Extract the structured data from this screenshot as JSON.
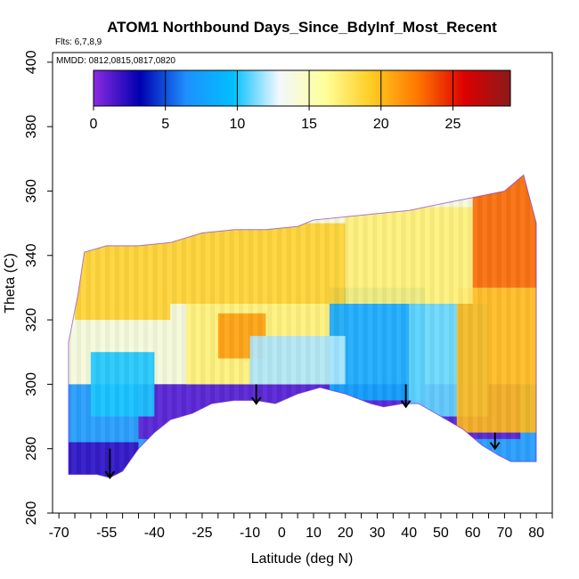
{
  "chart_data": {
    "type": "heatmap",
    "title": "ATOM1 Northbound Days_Since_BdyInf_Most_Recent",
    "subtitle_lines": [
      "Flts: 6,7,8,9",
      "MMDD: 0812,0815,0817,0820"
    ],
    "xlabel": "Latitude (deg N)",
    "ylabel": "Theta (C)",
    "xlim": [
      -72,
      85
    ],
    "ylim": [
      260,
      403
    ],
    "x_ticks": [
      -70,
      -55,
      -40,
      -25,
      -10,
      0,
      10,
      20,
      30,
      40,
      50,
      60,
      70,
      80
    ],
    "x_ticks_minor": [
      -65,
      -60,
      -50,
      -45,
      -35,
      -30,
      -20,
      -15,
      -5,
      5,
      15,
      25,
      35,
      45,
      55,
      65,
      75,
      85
    ],
    "y_ticks": [
      260,
      280,
      300,
      320,
      340,
      360,
      380,
      400
    ],
    "colorbar": {
      "min": 0,
      "max": 29,
      "ticks": [
        0,
        5,
        10,
        15,
        20,
        25
      ],
      "stops": [
        "#8b2be2",
        "#0000b0",
        "#1e90ff",
        "#00bfff",
        "#f2f8ff",
        "#ffff99",
        "#ffcc22",
        "#ff7700",
        "#dd0000",
        "#8b1a1a"
      ]
    },
    "domain_bottom_theta": [
      [
        -67,
        272
      ],
      [
        -62,
        272
      ],
      [
        -58,
        272
      ],
      [
        -54,
        271
      ],
      [
        -50,
        273
      ],
      [
        -45,
        280
      ],
      [
        -40,
        285
      ],
      [
        -35,
        289
      ],
      [
        -28,
        291
      ],
      [
        -22,
        294
      ],
      [
        -15,
        295
      ],
      [
        -8,
        295
      ],
      [
        -2,
        294
      ],
      [
        5,
        297
      ],
      [
        12,
        299
      ],
      [
        20,
        297
      ],
      [
        28,
        294
      ],
      [
        32,
        293
      ],
      [
        38,
        294
      ],
      [
        43,
        294
      ],
      [
        50,
        290
      ],
      [
        57,
        286
      ],
      [
        63,
        281
      ],
      [
        68,
        278
      ],
      [
        72,
        276
      ],
      [
        80,
        276
      ]
    ],
    "domain_top_theta": [
      [
        -67,
        313
      ],
      [
        -64,
        328
      ],
      [
        -62,
        341
      ],
      [
        -55,
        343
      ],
      [
        -45,
        343
      ],
      [
        -35,
        344
      ],
      [
        -25,
        347
      ],
      [
        -15,
        348
      ],
      [
        -5,
        348
      ],
      [
        5,
        349
      ],
      [
        10,
        351
      ],
      [
        20,
        352
      ],
      [
        30,
        353
      ],
      [
        40,
        354
      ],
      [
        50,
        356
      ],
      [
        60,
        358
      ],
      [
        70,
        360
      ],
      [
        76,
        365
      ],
      [
        80,
        350
      ]
    ],
    "regions": [
      {
        "lat": [
          -67,
          80
        ],
        "theta": [
          270,
          300
        ],
        "days": 7
      },
      {
        "lat": [
          -67,
          -45
        ],
        "theta": [
          270,
          282
        ],
        "days": 2
      },
      {
        "lat": [
          -45,
          75
        ],
        "theta": [
          283,
          300
        ],
        "days": 1
      },
      {
        "lat": [
          -30,
          20
        ],
        "theta": [
          300,
          325
        ],
        "days": 17
      },
      {
        "lat": [
          -20,
          -5
        ],
        "theta": [
          308,
          322
        ],
        "days": 21
      },
      {
        "lat": [
          15,
          45
        ],
        "theta": [
          295,
          330
        ],
        "days": 8
      },
      {
        "lat": [
          40,
          65
        ],
        "theta": [
          290,
          325
        ],
        "days": 11
      },
      {
        "lat": [
          55,
          80
        ],
        "theta": [
          285,
          330
        ],
        "days": 20
      },
      {
        "lat": [
          -65,
          -35
        ],
        "theta": [
          320,
          345
        ],
        "days": 19
      },
      {
        "lat": [
          -35,
          20
        ],
        "theta": [
          325,
          350
        ],
        "days": 19
      },
      {
        "lat": [
          20,
          60
        ],
        "theta": [
          325,
          355
        ],
        "days": 17
      },
      {
        "lat": [
          60,
          80
        ],
        "theta": [
          330,
          365
        ],
        "days": 23
      },
      {
        "lat": [
          -10,
          20
        ],
        "theta": [
          300,
          315
        ],
        "days": 12
      },
      {
        "lat": [
          -60,
          -40
        ],
        "theta": [
          290,
          310
        ],
        "days": 10
      }
    ],
    "arrows": [
      {
        "lat": -54,
        "theta_from": 280,
        "theta_to": 271
      },
      {
        "lat": -8,
        "theta_from": 300,
        "theta_to": 294
      },
      {
        "lat": 39,
        "theta_from": 300,
        "theta_to": 293
      },
      {
        "lat": 67,
        "theta_from": 285,
        "theta_to": 280
      }
    ]
  }
}
